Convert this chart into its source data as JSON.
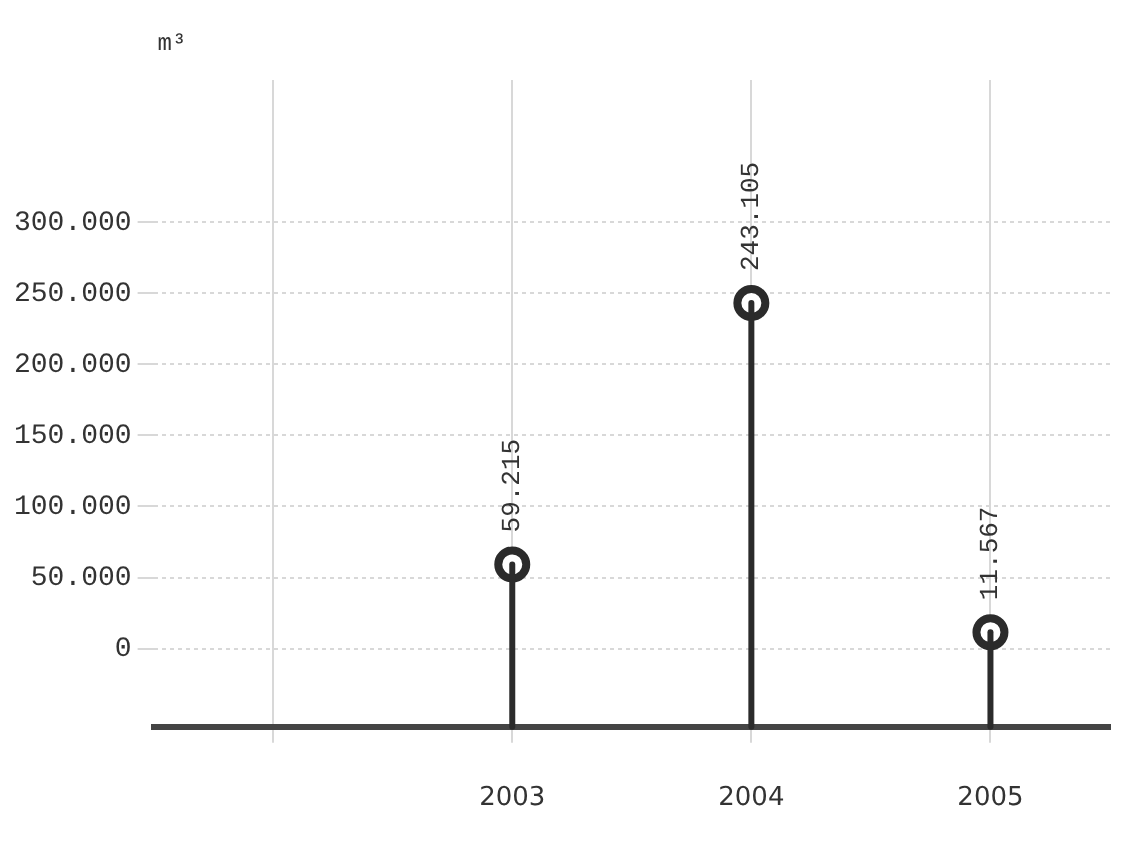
{
  "chart_data": {
    "type": "lollipop",
    "ylabel": "m³",
    "categories": [
      null,
      "2003",
      "2004",
      "2005"
    ],
    "values": [
      null,
      59215,
      243105,
      11567
    ],
    "value_labels": [
      null,
      "59.215",
      "243.105",
      "11.567"
    ],
    "color": "#2b2b2b",
    "marker": "circle",
    "grid": true,
    "ylim": [
      -55000,
      400000
    ],
    "yticks": [
      {
        "value": 0,
        "label": "0"
      },
      {
        "value": 50000,
        "label": "50.000"
      },
      {
        "value": 100000,
        "label": "100.000"
      },
      {
        "value": 150000,
        "label": "150.000"
      },
      {
        "value": 200000,
        "label": "200.000"
      },
      {
        "value": 250000,
        "label": "250.000"
      },
      {
        "value": 300000,
        "label": "300.000"
      }
    ]
  }
}
